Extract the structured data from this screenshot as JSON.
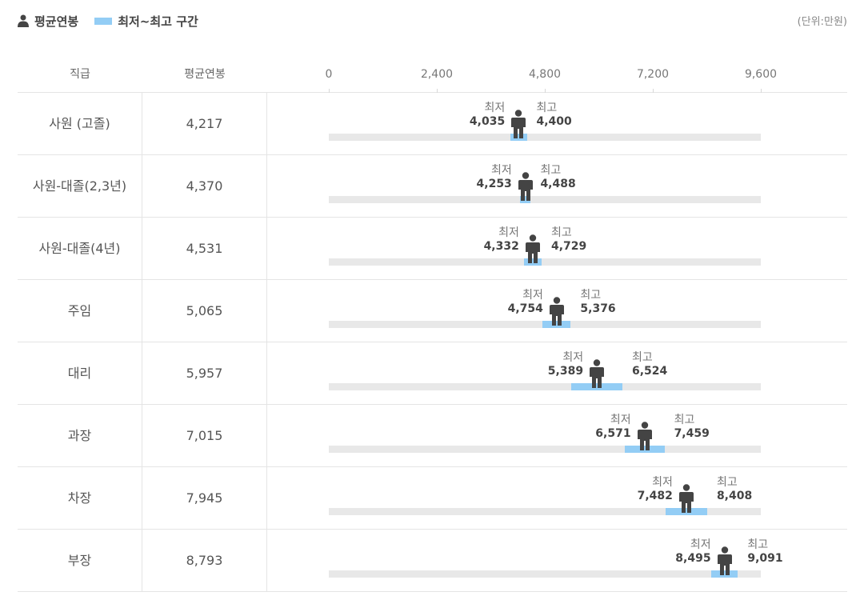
{
  "legend": {
    "avg_label": "평균연봉",
    "range_label": "최저~최고 구간",
    "unit": "(단위:만원)"
  },
  "colors": {
    "range": "#93cdf5",
    "track": "#e8e8e8",
    "person": "#444444"
  },
  "icons": {
    "person": "person-icon"
  },
  "header": {
    "col_rank": "직급",
    "col_avg": "평균연봉"
  },
  "row_labels": {
    "min": "최저",
    "max": "최고"
  },
  "chart_data": {
    "type": "range-bar",
    "title": "",
    "xlim": [
      0,
      9600
    ],
    "ticks": [
      0,
      2400,
      4800,
      7200,
      9600
    ],
    "tick_labels": [
      "0",
      "2,400",
      "4,800",
      "7,200",
      "9,600"
    ],
    "rows": [
      {
        "rank": "사원 (고졸)",
        "avg": 4217,
        "avg_label": "4,217",
        "min": 4035,
        "min_label": "4,035",
        "max": 4400,
        "max_label": "4,400"
      },
      {
        "rank": "사원-대졸(2,3년)",
        "avg": 4370,
        "avg_label": "4,370",
        "min": 4253,
        "min_label": "4,253",
        "max": 4488,
        "max_label": "4,488"
      },
      {
        "rank": "사원-대졸(4년)",
        "avg": 4531,
        "avg_label": "4,531",
        "min": 4332,
        "min_label": "4,332",
        "max": 4729,
        "max_label": "4,729"
      },
      {
        "rank": "주임",
        "avg": 5065,
        "avg_label": "5,065",
        "min": 4754,
        "min_label": "4,754",
        "max": 5376,
        "max_label": "5,376"
      },
      {
        "rank": "대리",
        "avg": 5957,
        "avg_label": "5,957",
        "min": 5389,
        "min_label": "5,389",
        "max": 6524,
        "max_label": "6,524"
      },
      {
        "rank": "과장",
        "avg": 7015,
        "avg_label": "7,015",
        "min": 6571,
        "min_label": "6,571",
        "max": 7459,
        "max_label": "7,459"
      },
      {
        "rank": "차장",
        "avg": 7945,
        "avg_label": "7,945",
        "min": 7482,
        "min_label": "7,482",
        "max": 8408,
        "max_label": "8,408"
      },
      {
        "rank": "부장",
        "avg": 8793,
        "avg_label": "8,793",
        "min": 8495,
        "min_label": "8,495",
        "max": 9091,
        "max_label": "9,091"
      }
    ]
  }
}
